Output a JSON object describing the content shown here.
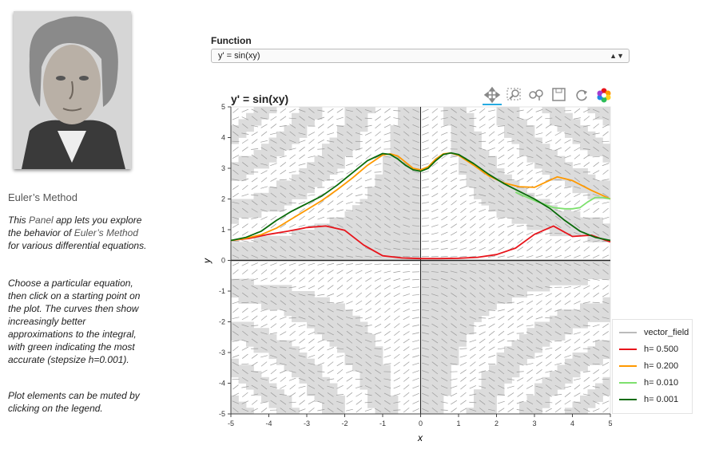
{
  "sidebar": {
    "title": "Euler’s Method",
    "intro": {
      "pre": "This ",
      "link1": "Panel",
      "mid": " app lets you explore the behavior of ",
      "link2": "Euler’s Method",
      "post": " for various differential equations."
    },
    "para2": "Choose a particular equation, then click on a starting point on the plot. The curves then show increasingly better approximations to the integral, with green indicating the most accurate (stepsize h=0.001).",
    "para3": "Plot elements can be muted by clicking on the legend."
  },
  "function_select": {
    "label": "Function",
    "value": "y' = sin(xy)"
  },
  "toolbar": {
    "tools": [
      "pan-icon",
      "box-zoom-icon",
      "wheel-zoom-icon",
      "save-icon",
      "reset-icon",
      "bokeh-logo-icon"
    ]
  },
  "chart_data": {
    "type": "line",
    "title": "y' = sin(xy)",
    "xlabel": "x",
    "ylabel": "y",
    "xlim": [
      -5,
      5
    ],
    "ylim": [
      -5,
      5
    ],
    "xticks": [
      "-5",
      "-4",
      "-3",
      "-2",
      "-1",
      "0",
      "1",
      "2",
      "3",
      "4",
      "5"
    ],
    "yticks": [
      "5",
      "4",
      "3",
      "2",
      "1",
      "0",
      "-1",
      "-2",
      "-3",
      "-4",
      "-5"
    ],
    "legend_position": "bottom-right",
    "legend": [
      "vector_field",
      "h= 0.500",
      "h= 0.200",
      "h= 0.010",
      "h= 0.001"
    ],
    "series": [
      {
        "name": "vector_field",
        "color": "#999999",
        "x": [],
        "y": []
      },
      {
        "name": "h= 0.500",
        "color": "#e8141b",
        "x": [
          -5,
          -4.5,
          -4,
          -3.5,
          -3,
          -2.5,
          -2,
          -1.5,
          -1,
          -0.5,
          0,
          0.5,
          1,
          1.5,
          2,
          2.5,
          3,
          3.5,
          4,
          4.5,
          5
        ],
        "y": [
          0.65,
          0.72,
          0.85,
          0.95,
          1.07,
          1.12,
          0.98,
          0.5,
          0.15,
          0.08,
          0.06,
          0.06,
          0.07,
          0.1,
          0.19,
          0.4,
          0.85,
          1.12,
          0.78,
          0.82,
          0.6
        ]
      },
      {
        "name": "h= 0.200",
        "color": "#ff9900",
        "x": [
          -5,
          -4.6,
          -4.2,
          -3.8,
          -3.4,
          -3.0,
          -2.6,
          -2.2,
          -1.8,
          -1.4,
          -1.0,
          -0.8,
          -0.6,
          -0.4,
          -0.2,
          0,
          0.2,
          0.4,
          0.6,
          0.8,
          1.0,
          1.4,
          1.8,
          2.2,
          2.6,
          3.0,
          3.3,
          3.6,
          4.0,
          4.5,
          5
        ],
        "y": [
          0.65,
          0.72,
          0.84,
          1.05,
          1.35,
          1.65,
          1.95,
          2.3,
          2.68,
          3.1,
          3.43,
          3.47,
          3.4,
          3.2,
          3.0,
          2.95,
          3.05,
          3.3,
          3.47,
          3.5,
          3.42,
          3.1,
          2.75,
          2.52,
          2.4,
          2.38,
          2.55,
          2.72,
          2.6,
          2.28,
          2.0
        ]
      },
      {
        "name": "h= 0.010",
        "color": "#7ee06e",
        "x": [
          2.5,
          3.0,
          3.5,
          3.8,
          4.0,
          4.2,
          4.4,
          4.6,
          4.8,
          5.0
        ],
        "y": [
          2.22,
          1.95,
          1.72,
          1.68,
          1.68,
          1.72,
          1.9,
          2.05,
          2.05,
          2.0
        ]
      },
      {
        "name": "h= 0.001",
        "color": "#0a6b0a",
        "x": [
          -5,
          -4.6,
          -4.2,
          -3.8,
          -3.4,
          -3.0,
          -2.6,
          -2.2,
          -1.8,
          -1.4,
          -1.0,
          -0.8,
          -0.6,
          -0.4,
          -0.2,
          0,
          0.2,
          0.4,
          0.6,
          0.8,
          1.0,
          1.4,
          1.8,
          2.2,
          2.6,
          3.0,
          3.4,
          3.8,
          4.2,
          4.6,
          5
        ],
        "y": [
          0.65,
          0.75,
          0.95,
          1.3,
          1.6,
          1.85,
          2.1,
          2.45,
          2.85,
          3.25,
          3.48,
          3.45,
          3.3,
          3.1,
          2.95,
          2.9,
          3.0,
          3.25,
          3.45,
          3.5,
          3.45,
          3.15,
          2.8,
          2.5,
          2.25,
          2.0,
          1.7,
          1.3,
          0.95,
          0.75,
          0.65
        ]
      }
    ]
  }
}
